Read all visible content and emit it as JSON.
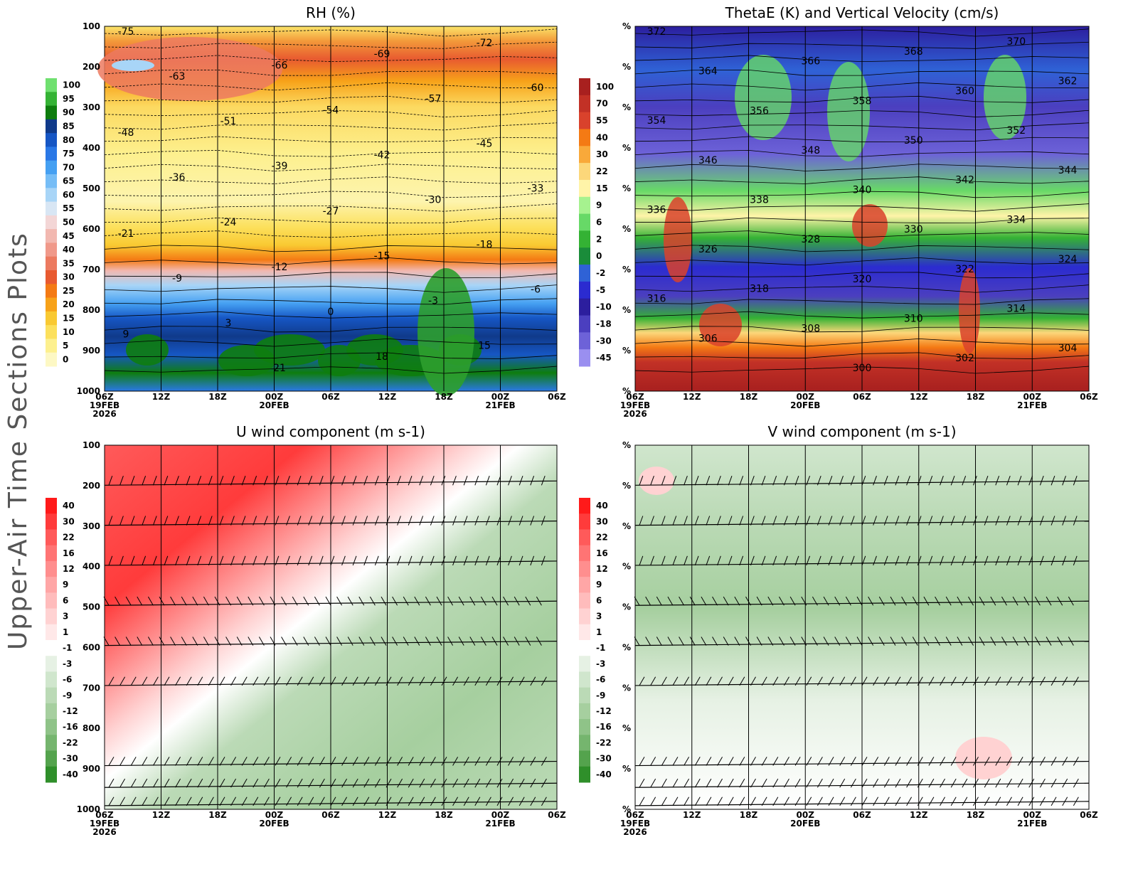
{
  "figure_title": "Upper-Air Time Sections Plots",
  "x_ticks": [
    {
      "label": "06Z",
      "date": "19FEB",
      "year": "2026"
    },
    {
      "label": "12Z"
    },
    {
      "label": "18Z"
    },
    {
      "label": "00Z",
      "date": "20FEB"
    },
    {
      "label": "06Z"
    },
    {
      "label": "12Z"
    },
    {
      "label": "18Z"
    },
    {
      "label": "00Z",
      "date": "21FEB"
    },
    {
      "label": "06Z"
    }
  ],
  "chart_data": [
    {
      "type": "heatmap",
      "title": "RH (%)",
      "y_axis_labels": [
        "100",
        "200",
        "300",
        "400",
        "500",
        "600",
        "700",
        "800",
        "900",
        "1000"
      ],
      "ylim": [
        1000,
        100
      ],
      "colorbar": {
        "labels": [
          "100",
          "95",
          "90",
          "85",
          "80",
          "75",
          "70",
          "65",
          "60",
          "55",
          "50",
          "45",
          "40",
          "35",
          "30",
          "25",
          "20",
          "15",
          "10",
          "5",
          "0"
        ],
        "colors": [
          "#6fe06f",
          "#35b335",
          "#0e7d0e",
          "#103a8a",
          "#1656c4",
          "#2a78e6",
          "#45a0f2",
          "#76bdf6",
          "#a8d5f7",
          "#d8e6f4",
          "#f3d6d6",
          "#f2b8b0",
          "#f0998a",
          "#ec7a60",
          "#e85a30",
          "#f47a14",
          "#f7a219",
          "#f9c932",
          "#fce05c",
          "#fdf08e",
          "#fdf8c4"
        ]
      },
      "contour_labels": [
        "-75",
        "-72",
        "-69",
        "-66",
        "-63",
        "-60",
        "-57",
        "-54",
        "-51",
        "-48",
        "-45",
        "-42",
        "-39",
        "-36",
        "-33",
        "-30",
        "-27",
        "-24",
        "-21",
        "-18",
        "-15",
        "-12",
        "-9",
        "-6",
        "-3",
        "0",
        "3",
        "9",
        "15",
        "18",
        "21"
      ]
    },
    {
      "type": "heatmap",
      "title": "ThetaE (K) and Vertical Velocity (cm/s)",
      "y_axis_labels": [
        "%",
        "%",
        "%",
        "%",
        "%",
        "%",
        "%",
        "%",
        "%",
        "%"
      ],
      "colorbar": {
        "labels": [
          "100",
          "70",
          "55",
          "40",
          "30",
          "22",
          "15",
          "9",
          "6",
          "2",
          "0",
          "-2",
          "-5",
          "-10",
          "-18",
          "-30",
          "-45"
        ],
        "colors": [
          "#a8201f",
          "#c23126",
          "#d9422c",
          "#f47a14",
          "#f9a93a",
          "#fcd77a",
          "#fff4a8",
          "#a6f28f",
          "#67d967",
          "#34b234",
          "#1a8c3a",
          "#2f62d6",
          "#2b2bd0",
          "#2c1e9e",
          "#4b3fbf",
          "#6d62d8",
          "#9a8ff0"
        ]
      },
      "contour_labels": [
        "372",
        "370",
        "368",
        "366",
        "364",
        "362",
        "360",
        "358",
        "356",
        "354",
        "352",
        "350",
        "348",
        "346",
        "344",
        "342",
        "340",
        "338",
        "336",
        "334",
        "330",
        "328",
        "326",
        "324",
        "322",
        "320",
        "318",
        "316",
        "314",
        "310",
        "308",
        "306",
        "304",
        "302",
        "300"
      ]
    },
    {
      "type": "heatmap",
      "title": "U wind component (m s-1)",
      "y_axis_labels": [
        "100",
        "200",
        "300",
        "400",
        "500",
        "600",
        "700",
        "800",
        "900",
        "1000"
      ],
      "ylim": [
        1000,
        100
      ],
      "colorbar": {
        "labels": [
          "40",
          "30",
          "22",
          "16",
          "12",
          "9",
          "6",
          "3",
          "1",
          "-1",
          "-3",
          "-6",
          "-9",
          "-12",
          "-16",
          "-22",
          "-30",
          "-40"
        ],
        "colors": [
          "#ff1a1a",
          "#ff3b3b",
          "#ff5a5a",
          "#ff7474",
          "#ff8e8e",
          "#ffa6a6",
          "#ffbcbc",
          "#ffd2d2",
          "#ffe8e8",
          "#ffffff",
          "#e6f1e4",
          "#d0e6cd",
          "#bbdab6",
          "#a6cf9f",
          "#8fc388",
          "#75b56e",
          "#54a34d",
          "#2f8f2a"
        ]
      }
    },
    {
      "type": "heatmap",
      "title": "V wind component (m s-1)",
      "y_axis_labels": [
        "%",
        "%",
        "%",
        "%",
        "%",
        "%",
        "%",
        "%",
        "%",
        "%"
      ],
      "colorbar": {
        "labels": [
          "40",
          "30",
          "22",
          "16",
          "12",
          "9",
          "6",
          "3",
          "1",
          "-1",
          "-3",
          "-6",
          "-9",
          "-12",
          "-16",
          "-22",
          "-30",
          "-40"
        ],
        "colors": [
          "#ff1a1a",
          "#ff3b3b",
          "#ff5a5a",
          "#ff7474",
          "#ff8e8e",
          "#ffa6a6",
          "#ffbcbc",
          "#ffd2d2",
          "#ffe8e8",
          "#ffffff",
          "#e6f1e4",
          "#d0e6cd",
          "#bbdab6",
          "#a6cf9f",
          "#8fc388",
          "#75b56e",
          "#54a34d",
          "#2f8f2a"
        ]
      }
    }
  ]
}
